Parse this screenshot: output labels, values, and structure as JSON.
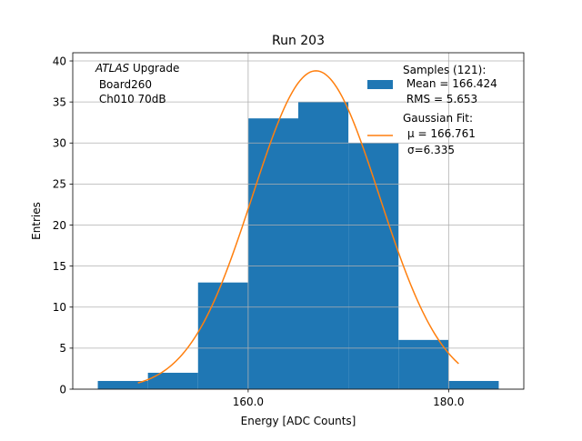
{
  "chart_data": {
    "type": "bar",
    "title": "Run 203",
    "xlabel": "Energy [ADC Counts]",
    "ylabel": "Entries",
    "xlim": [
      142.5,
      187.5
    ],
    "ylim": [
      0,
      41
    ],
    "grid": true,
    "x_ticks": [
      {
        "value": 160,
        "label": "160.0"
      },
      {
        "value": 180,
        "label": "180.0"
      }
    ],
    "y_ticks": [
      {
        "value": 0,
        "label": "0"
      },
      {
        "value": 5,
        "label": "5"
      },
      {
        "value": 10,
        "label": "10"
      },
      {
        "value": 15,
        "label": "15"
      },
      {
        "value": 20,
        "label": "20"
      },
      {
        "value": 25,
        "label": "25"
      },
      {
        "value": 30,
        "label": "30"
      },
      {
        "value": 35,
        "label": "35"
      },
      {
        "value": 40,
        "label": "40"
      }
    ],
    "histogram": {
      "bin_edges": [
        145,
        150,
        155,
        160,
        165,
        170,
        175,
        180,
        185
      ],
      "counts": [
        1,
        2,
        13,
        33,
        35,
        30,
        6,
        1
      ],
      "color": "#1f77b4"
    },
    "fit": {
      "mu": 166.761,
      "sigma": 6.335,
      "peak": 38.8,
      "x_range": [
        149,
        181
      ],
      "color": "#ff7f0e"
    },
    "annotation": [
      "Upgrade",
      " Board260",
      " Ch010 70dB"
    ],
    "annotation_italic": "ATLAS",
    "legend": {
      "position": "top-right",
      "entries": [
        {
          "type": "patch",
          "lines": [
            "Samples (121):",
            " Mean = 166.424",
            " RMS = 5.653"
          ]
        },
        {
          "type": "line",
          "lines": [
            "Gaussian Fit:",
            "μ = 166.761",
            "σ=6.335"
          ]
        }
      ]
    }
  }
}
